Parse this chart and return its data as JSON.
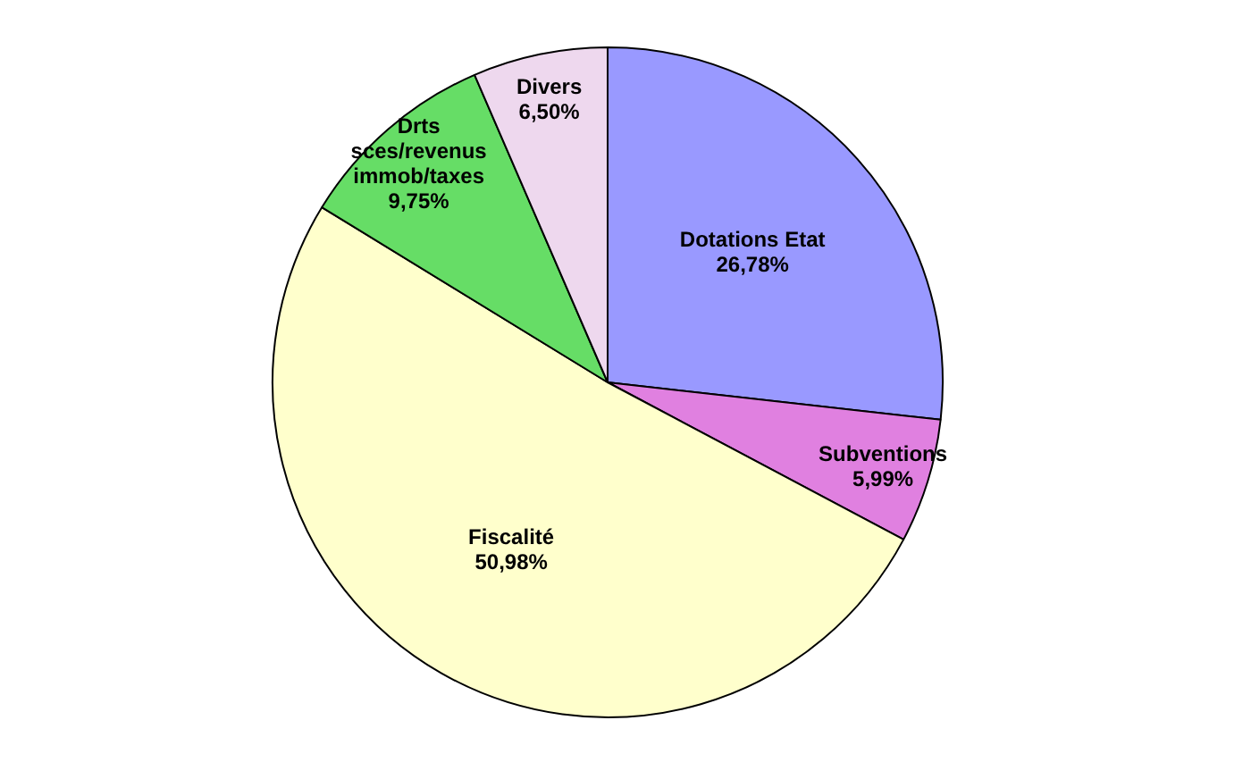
{
  "chart_data": {
    "type": "pie",
    "categories": [
      "Dotations Etat",
      "Subventions",
      "Fiscalité",
      "Drts\nsces/revenus\nimmob/taxes",
      "Divers"
    ],
    "values": [
      26.78,
      5.99,
      50.98,
      9.75,
      6.5
    ],
    "value_labels": [
      "26,78%",
      "5,99%",
      "50,98%",
      "9,75%",
      "6,50%"
    ],
    "colors": [
      "#9999ff",
      "#e080e0",
      "#ffffcc",
      "#66dd66",
      "#eed8ee"
    ],
    "legend": false
  }
}
